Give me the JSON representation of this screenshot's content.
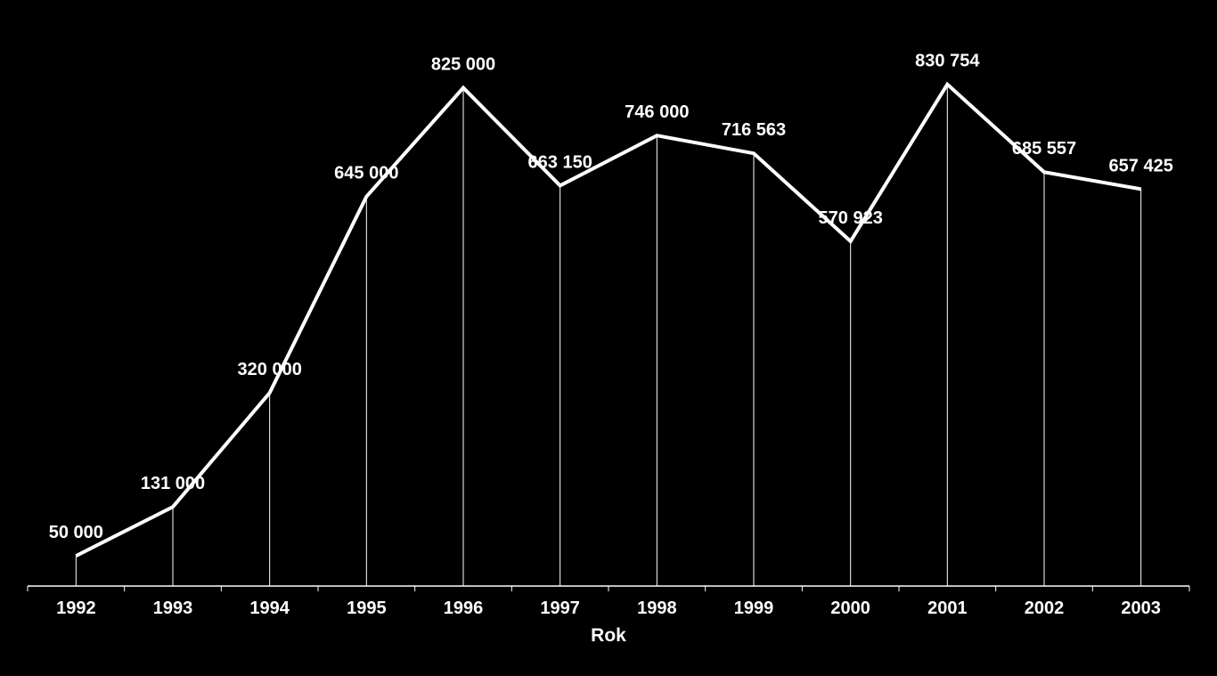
{
  "chart_data": {
    "type": "line",
    "title": "",
    "xlabel": "Rok",
    "ylabel": "",
    "categories": [
      "1992",
      "1993",
      "1994",
      "1995",
      "1996",
      "1997",
      "1998",
      "1999",
      "2000",
      "2001",
      "2002",
      "2003"
    ],
    "series": [
      {
        "values": [
          50000,
          131000,
          320000,
          645000,
          825000,
          663150,
          746000,
          716563,
          570923,
          830754,
          685557,
          657425
        ],
        "labels": [
          "50 000",
          "131 000",
          "320 000",
          "645 000",
          "825 000",
          "663 150",
          "746 000",
          "716 563",
          "570 923",
          "830 754",
          "685 557",
          "657 425"
        ]
      }
    ],
    "ylim": [
      0,
      850000
    ],
    "grid": false,
    "drop_lines": true,
    "legend": "none",
    "colors": {
      "background": "#000000",
      "line": "#ffffff",
      "text": "#ffffff"
    }
  }
}
